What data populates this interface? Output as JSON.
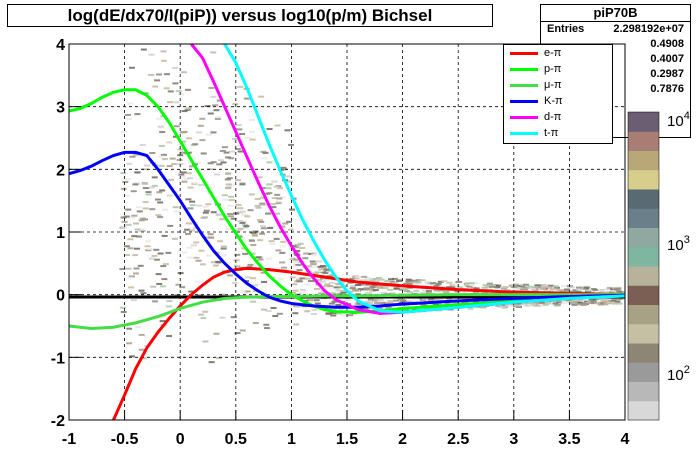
{
  "chart_data": {
    "type": "line",
    "title": "log(dE/dx70/I(piP)) versus log10(p/m) Bichsel",
    "xlim": [
      -1,
      4
    ],
    "ylim": [
      -2,
      4
    ],
    "xticks": [
      "-1",
      "-0.5",
      "0",
      "0.5",
      "1",
      "1.5",
      "2",
      "2.5",
      "3",
      "3.5",
      "4"
    ],
    "yticks": [
      "-2",
      "-1",
      "0",
      "1",
      "2",
      "3",
      "4"
    ],
    "grid": true,
    "legend_position": "top-right",
    "stats": {
      "name": "piP70B",
      "entries_label": "Entries",
      "entries_value": "2.298192e+07",
      "values": [
        "0.4908",
        "0.4007",
        "0.2987",
        "0.7876"
      ]
    },
    "colorbar_ticks": [
      "10^2",
      "10^3",
      "10^4"
    ],
    "series": [
      {
        "name": "e-π",
        "color": "#ff0000",
        "x": [
          -0.6,
          -0.5,
          -0.4,
          -0.3,
          -0.2,
          -0.1,
          0,
          0.1,
          0.2,
          0.3,
          0.4,
          0.5,
          0.6,
          0.8,
          1.0,
          1.3,
          1.6,
          2.0,
          2.5,
          3.0,
          3.5,
          4.0
        ],
        "y": [
          -2.1,
          -1.6,
          -1.18,
          -0.85,
          -0.6,
          -0.38,
          -0.18,
          0.0,
          0.15,
          0.28,
          0.36,
          0.4,
          0.42,
          0.4,
          0.36,
          0.28,
          0.2,
          0.14,
          0.08,
          0.04,
          0.02,
          0.0
        ]
      },
      {
        "name": "p-π",
        "color": "#00ff00",
        "x": [
          -1.0,
          -0.9,
          -0.8,
          -0.7,
          -0.6,
          -0.5,
          -0.4,
          -0.3,
          -0.2,
          -0.1,
          0,
          0.1,
          0.2,
          0.3,
          0.4,
          0.5,
          0.6,
          0.7,
          0.8,
          0.9,
          1.0,
          1.1,
          1.2,
          1.3,
          1.4,
          1.6,
          1.8,
          2.0,
          2.5,
          3.0,
          3.5,
          4.0
        ],
        "y": [
          2.93,
          2.97,
          3.05,
          3.15,
          3.23,
          3.27,
          3.27,
          3.18,
          3.0,
          2.75,
          2.45,
          2.15,
          1.85,
          1.55,
          1.25,
          0.98,
          0.72,
          0.5,
          0.3,
          0.14,
          0.0,
          -0.1,
          -0.18,
          -0.24,
          -0.27,
          -0.28,
          -0.26,
          -0.22,
          -0.16,
          -0.1,
          -0.05,
          -0.02
        ]
      },
      {
        "name": "μ-π",
        "color": "#44dd44",
        "x": [
          -1.0,
          -0.8,
          -0.6,
          -0.4,
          -0.2,
          0,
          0.2,
          0.4,
          0.6,
          0.8,
          1.0,
          1.3,
          1.6,
          2.0,
          2.5,
          3.0,
          3.5,
          4.0
        ],
        "y": [
          -0.5,
          -0.54,
          -0.52,
          -0.45,
          -0.35,
          -0.22,
          -0.12,
          -0.06,
          -0.04,
          -0.03,
          -0.03,
          -0.02,
          -0.02,
          -0.01,
          0.0,
          0.0,
          0.0,
          0.0
        ]
      },
      {
        "name": "K-π",
        "color": "#0000ff",
        "x": [
          -1.0,
          -0.9,
          -0.8,
          -0.7,
          -0.6,
          -0.5,
          -0.4,
          -0.3,
          -0.2,
          -0.1,
          0,
          0.1,
          0.2,
          0.3,
          0.4,
          0.5,
          0.6,
          0.7,
          0.8,
          0.9,
          1.0,
          1.2,
          1.4,
          1.6,
          1.8,
          2.0,
          2.5,
          3.0,
          3.5,
          4.0
        ],
        "y": [
          1.93,
          1.98,
          2.05,
          2.14,
          2.22,
          2.27,
          2.27,
          2.22,
          2.0,
          1.75,
          1.5,
          1.22,
          0.95,
          0.7,
          0.5,
          0.33,
          0.18,
          0.06,
          -0.04,
          -0.1,
          -0.14,
          -0.18,
          -0.2,
          -0.2,
          -0.18,
          -0.15,
          -0.1,
          -0.06,
          -0.03,
          -0.01
        ]
      },
      {
        "name": "d-π",
        "color": "#ff00ff",
        "x": [
          0.1,
          0.2,
          0.3,
          0.4,
          0.5,
          0.6,
          0.7,
          0.8,
          0.9,
          1.0,
          1.1,
          1.2,
          1.3,
          1.4,
          1.6,
          1.8,
          2.0,
          2.5,
          3.0,
          3.5,
          4.0
        ],
        "y": [
          4.0,
          3.78,
          3.4,
          3.0,
          2.6,
          2.2,
          1.8,
          1.42,
          1.08,
          0.78,
          0.5,
          0.26,
          0.06,
          -0.08,
          -0.24,
          -0.3,
          -0.28,
          -0.2,
          -0.12,
          -0.06,
          -0.02
        ]
      },
      {
        "name": "t-π",
        "color": "#00ffff",
        "x": [
          0.4,
          0.5,
          0.6,
          0.7,
          0.8,
          0.9,
          1.0,
          1.1,
          1.2,
          1.3,
          1.4,
          1.5,
          1.6,
          1.8,
          2.0,
          2.5,
          3.0,
          3.5,
          4.0
        ],
        "y": [
          4.0,
          3.7,
          3.3,
          2.85,
          2.4,
          1.98,
          1.58,
          1.2,
          0.86,
          0.55,
          0.28,
          0.06,
          -0.1,
          -0.26,
          -0.28,
          -0.2,
          -0.12,
          -0.06,
          -0.02
        ]
      }
    ]
  }
}
